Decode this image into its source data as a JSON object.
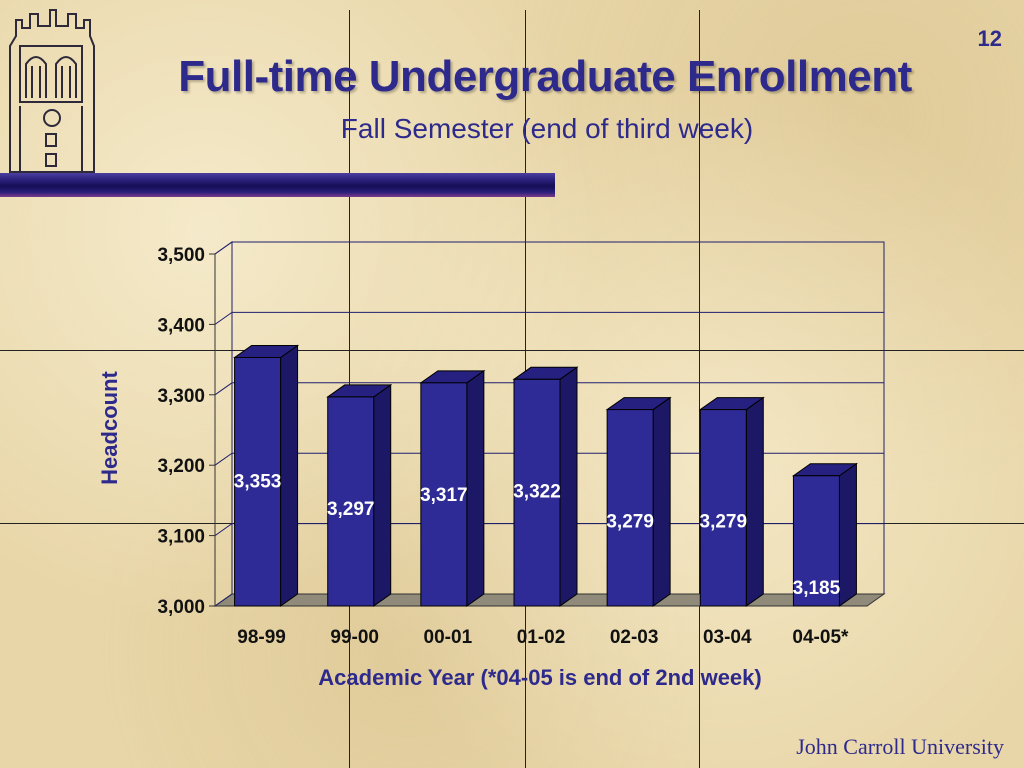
{
  "page_number": "12",
  "footer": "John Carroll University",
  "chart_data": {
    "type": "bar",
    "title": "Full-time Undergraduate Enrollment",
    "subtitle": "Fall Semester (end of third week)",
    "xlabel": "Academic Year (*04-05 is end of 2nd week)",
    "ylabel": "Headcount",
    "categories": [
      "98-99",
      "99-00",
      "00-01",
      "01-02",
      "02-03",
      "03-04",
      "04-05*"
    ],
    "values": [
      3353,
      3297,
      3317,
      3322,
      3279,
      3279,
      3185
    ],
    "data_labels": [
      "3,353",
      "3,297",
      "3,317",
      "3,322",
      "3,279",
      "3,279",
      "3,185"
    ],
    "ylim": [
      3000,
      3500
    ],
    "yticks": [
      3000,
      3100,
      3200,
      3300,
      3400,
      3500
    ],
    "ytick_labels": [
      "3,000",
      "3,100",
      "3,200",
      "3,300",
      "3,400",
      "3,500"
    ],
    "grid": true,
    "colors": {
      "bar_front": "#2e2a96",
      "bar_side": "#1c1866",
      "bar_top": "#262080",
      "text": "#2e2a8c",
      "grid": "#1f1f6e"
    }
  }
}
